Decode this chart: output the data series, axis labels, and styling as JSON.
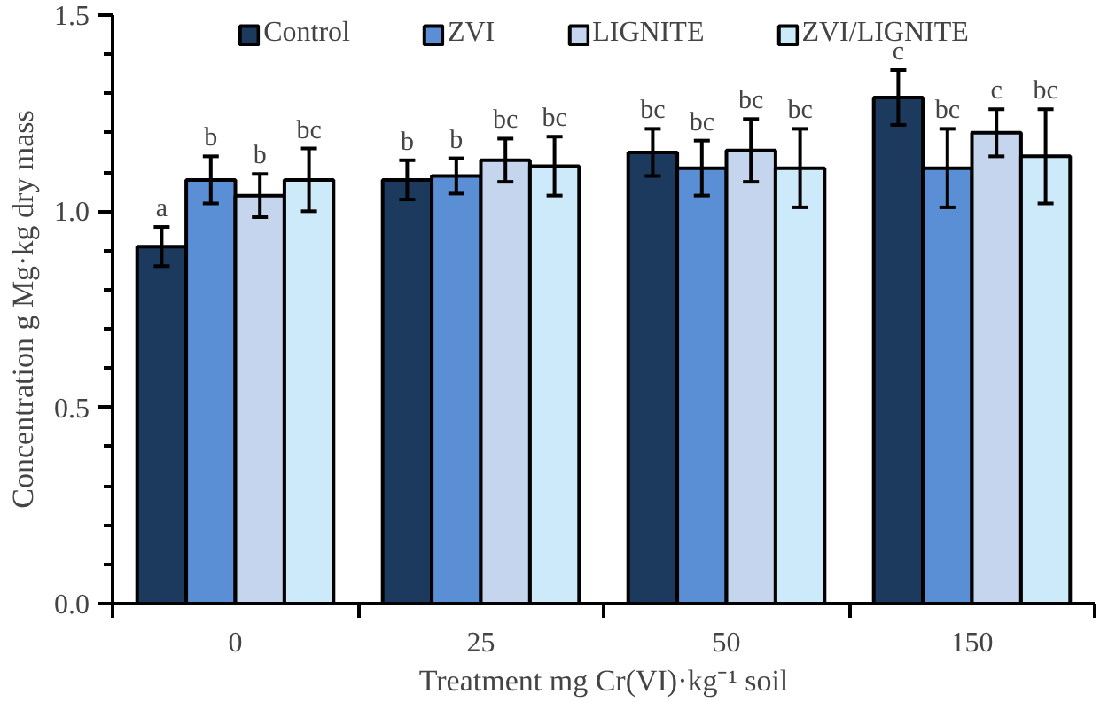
{
  "chart_data": {
    "type": "bar",
    "xlabel": "Treatment mg Cr(VI)·kg⁻¹ soil",
    "ylabel": "Concentration g Mg·kg dry mass",
    "categories": [
      "0",
      "25",
      "50",
      "150"
    ],
    "series": [
      {
        "name": "Control",
        "color": "#1b3a5e",
        "values": [
          0.91,
          1.08,
          1.15,
          1.29
        ],
        "errors": [
          0.05,
          0.05,
          0.06,
          0.07
        ],
        "value_labels": [
          "a",
          "b",
          "bc",
          "c"
        ]
      },
      {
        "name": "ZVI",
        "color": "#5a8fd6",
        "values": [
          1.08,
          1.09,
          1.11,
          1.11
        ],
        "errors": [
          0.06,
          0.045,
          0.07,
          0.1
        ],
        "value_labels": [
          "b",
          "b",
          "bc",
          "bc"
        ]
      },
      {
        "name": "LIGNITE",
        "color": "#c5d5ee",
        "values": [
          1.04,
          1.13,
          1.155,
          1.2
        ],
        "errors": [
          0.055,
          0.055,
          0.08,
          0.06
        ],
        "value_labels": [
          "b",
          "bc",
          "bc",
          "c"
        ]
      },
      {
        "name": "ZVI/LIGNITE",
        "color": "#cdeafb",
        "values": [
          1.08,
          1.115,
          1.11,
          1.14
        ],
        "errors": [
          0.08,
          0.075,
          0.1,
          0.12
        ],
        "value_labels": [
          "bc",
          "bc",
          "bc",
          "bc"
        ]
      }
    ],
    "ylim": [
      0,
      1.5
    ],
    "yticks": [
      {
        "value": 0,
        "label": "0.0"
      },
      {
        "value": 0.1,
        "label": null
      },
      {
        "value": 0.2,
        "label": null
      },
      {
        "value": 0.3,
        "label": null
      },
      {
        "value": 0.4,
        "label": null
      },
      {
        "value": 0.5,
        "label": "0.5"
      },
      {
        "value": 0.6,
        "label": null
      },
      {
        "value": 0.7,
        "label": null
      },
      {
        "value": 0.8,
        "label": null
      },
      {
        "value": 0.9,
        "label": null
      },
      {
        "value": 1.0,
        "label": "1.0"
      },
      {
        "value": 1.1,
        "label": null
      },
      {
        "value": 1.2,
        "label": null
      },
      {
        "value": 1.3,
        "label": null
      },
      {
        "value": 1.4,
        "label": null
      },
      {
        "value": 1.5,
        "label": "1.5"
      }
    ],
    "grid": false,
    "legend": "top"
  }
}
